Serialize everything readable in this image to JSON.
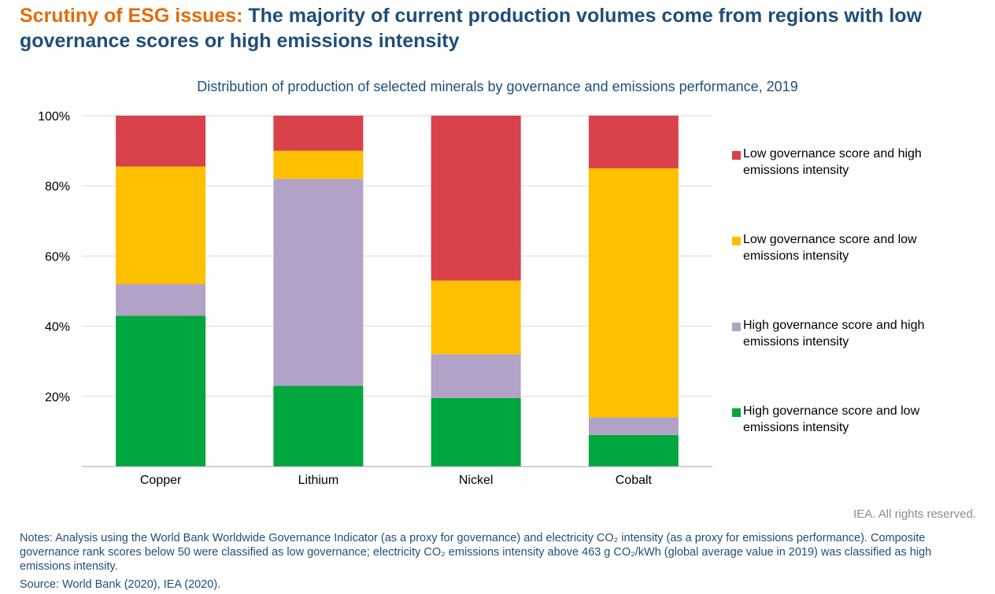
{
  "header": {
    "accent": "Scrutiny of ESG issues:",
    "title": "The majority of current production volumes come from regions with low governance scores or high emissions intensity"
  },
  "footer": {
    "rights": "IEA. All rights reserved.",
    "notes": "Notes: Analysis using the World Bank Worldwide Governance Indicator (as a proxy for governance) and electricity CO₂ intensity (as a proxy for emissions performance). Composite governance rank scores below 50 were classified as low governance; electricity CO₂ emissions intensity above 463 g CO₂/kWh (global average value in 2019) was classified as high emissions intensity.",
    "source": "Source: World Bank (2020), IEA (2020)."
  },
  "chart_data": {
    "type": "bar",
    "stacked": true,
    "title": "Distribution of production of selected minerals by governance and emissions performance, 2019",
    "xlabel": "",
    "ylabel": "",
    "ylim": [
      0,
      100
    ],
    "yticks": [
      "20%",
      "40%",
      "60%",
      "80%",
      "100%"
    ],
    "grid": true,
    "legend_position": "right",
    "categories": [
      "Copper",
      "Lithium",
      "Nickel",
      "Cobalt"
    ],
    "series": [
      {
        "name": "High governance score and low emissions intensity",
        "color": "#00a63e",
        "values": [
          43,
          23,
          19.5,
          9
        ]
      },
      {
        "name": "High governance score and high emissions intensity",
        "color": "#b2a2c7",
        "values": [
          9,
          59,
          12.5,
          5
        ]
      },
      {
        "name": "Low governance score and low emissions intensity",
        "color": "#ffc000",
        "values": [
          33.5,
          8,
          21,
          71
        ]
      },
      {
        "name": "Low governance score and high emissions intensity",
        "color": "#d9424b",
        "values": [
          14.5,
          10,
          47,
          15
        ]
      }
    ]
  }
}
